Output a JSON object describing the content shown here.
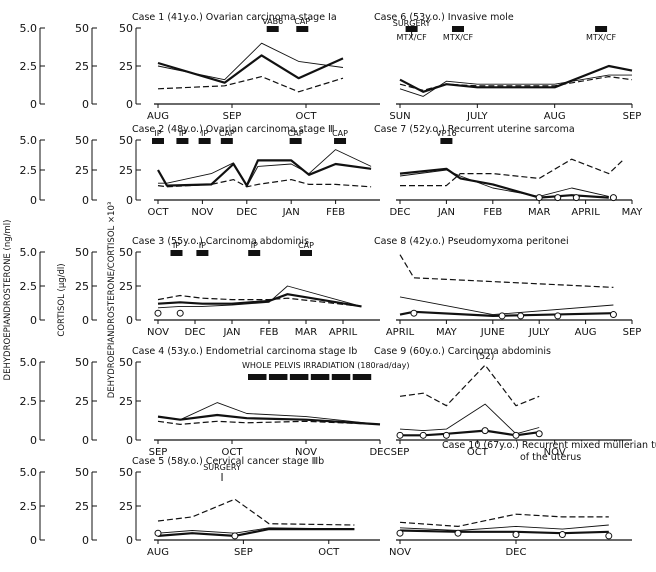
{
  "left_axes": {
    "dhea_label": "DEHYDROEPIANDROSTERONE (ng/ml)",
    "cortisol_label": "CORTISOL (µg/dl)",
    "ratio_label": "DEHYDROEPIANDROSTERONE/CORTISOL ×10³",
    "dhea_ticks": [
      "5.0",
      "2.5",
      "0"
    ],
    "cortisol_ticks": [
      "50",
      "25",
      "0"
    ],
    "ratio_ticks": [
      "50",
      "25",
      "0"
    ]
  },
  "chart_data": [
    {
      "type": "line",
      "title": "Case 1 (41y.o.) Ovarian carcinoma stage Ⅰa",
      "x_ticks": [
        "AUG",
        "SEP",
        "OCT"
      ],
      "x_range": [
        0,
        3
      ],
      "ylim": [
        0,
        50
      ],
      "annotations": [
        {
          "label": "VAB6",
          "x": 1.55
        },
        {
          "label": "CAP",
          "x": 1.95
        }
      ],
      "surgery": null,
      "series": [
        {
          "name": "DHEA",
          "style": "thick",
          "x": [
            0,
            0.9,
            1.4,
            1.9,
            2.5
          ],
          "values": [
            27,
            14,
            32,
            17,
            30
          ]
        },
        {
          "name": "DHEA/Cortisol",
          "style": "thin",
          "x": [
            0,
            0.9,
            1.4,
            1.9,
            2.5
          ],
          "values": [
            25,
            16,
            40,
            28,
            24
          ]
        },
        {
          "name": "Cortisol",
          "style": "dashed",
          "x": [
            0,
            0.9,
            1.4,
            1.9,
            2.5
          ],
          "values": [
            10,
            12,
            18,
            8,
            17
          ]
        }
      ]
    },
    {
      "type": "line",
      "title": "Case 2 (48y.o.) Ovarian carcinoma stage Ⅲ",
      "x_ticks": [
        "OCT",
        "NOV",
        "DEC",
        "JAN",
        "FEB"
      ],
      "x_range": [
        0,
        5
      ],
      "ylim": [
        0,
        50
      ],
      "annotations": [
        {
          "label": "IP",
          "x": 0.0
        },
        {
          "label": "IP",
          "x": 0.55
        },
        {
          "label": "IP",
          "x": 1.05
        },
        {
          "label": "CAP",
          "x": 1.55
        },
        {
          "label": "CAP",
          "x": 3.1
        },
        {
          "label": "CAP",
          "x": 4.1
        }
      ],
      "surgery": null,
      "series": [
        {
          "name": "DHEA",
          "style": "thick",
          "x": [
            0,
            0.2,
            1.2,
            1.7,
            2.0,
            2.25,
            3.0,
            3.4,
            4.0,
            4.8
          ],
          "values": [
            25,
            12,
            13,
            30,
            12,
            33,
            33,
            21,
            30,
            26
          ]
        },
        {
          "name": "DHEA/Cortisol",
          "style": "thin",
          "x": [
            0,
            0.2,
            1.2,
            1.7,
            2.0,
            2.25,
            3.0,
            3.4,
            4.0,
            4.8
          ],
          "values": [
            14,
            14,
            22,
            31,
            11,
            28,
            30,
            22,
            42,
            28
          ]
        },
        {
          "name": "Cortisol",
          "style": "dashed",
          "x": [
            0,
            0.2,
            1.2,
            1.7,
            2.0,
            2.25,
            3.0,
            3.4,
            4.0,
            4.8
          ],
          "values": [
            12,
            11,
            13,
            17,
            11,
            13,
            17,
            13,
            13,
            11
          ]
        }
      ]
    },
    {
      "type": "line",
      "title": "Case 3 (55y.o.) Carcinoma abdominis",
      "x_ticks": [
        "NOV",
        "DEC",
        "JAN",
        "FEB",
        "MAR",
        "APRIL"
      ],
      "x_range": [
        0,
        6
      ],
      "ylim": [
        0,
        50
      ],
      "annotations": [
        {
          "label": "IP",
          "x": 0.5
        },
        {
          "label": "IP",
          "x": 1.2
        },
        {
          "label": "IP",
          "x": 2.6
        },
        {
          "label": "CAP",
          "x": 4.0
        }
      ],
      "surgery": null,
      "series": [
        {
          "name": "DHEA",
          "style": "thick",
          "x": [
            0,
            0.6,
            1.2,
            2.0,
            3.0,
            3.5,
            5.5
          ],
          "values": [
            12,
            13,
            12,
            12,
            14,
            19,
            10
          ]
        },
        {
          "name": "DHEA/Cortisol",
          "style": "thin",
          "x": [
            0,
            0.6,
            1.2,
            2.0,
            3.0,
            3.5,
            5.5
          ],
          "values": [
            9,
            10,
            10,
            11,
            13,
            25,
            10
          ]
        },
        {
          "name": "Cortisol",
          "style": "dashed",
          "x": [
            0,
            0.6,
            1.2,
            2.0,
            3.0,
            3.5,
            5.5
          ],
          "values": [
            15,
            18,
            16,
            15,
            15,
            16,
            10
          ]
        },
        {
          "name": "Cortisol (open markers)",
          "style": "circle",
          "x": [
            0,
            0.6
          ],
          "values": [
            5,
            5
          ]
        }
      ]
    },
    {
      "type": "line",
      "title": "Case 4 (53y.o.) Endometrial carcinoma stage Ⅰb",
      "x_ticks": [
        "SEP",
        "OCT",
        "NOV",
        "DEC"
      ],
      "x_range": [
        0,
        3
      ],
      "ylim": [
        0,
        50
      ],
      "annotations": [],
      "radiation": "WHOLE PELVIS IRRADIATION (180rad/day)",
      "surgery": null,
      "series": [
        {
          "name": "DHEA",
          "style": "thick",
          "x": [
            0,
            0.3,
            0.8,
            1.2,
            2.0,
            3.0
          ],
          "values": [
            15,
            13,
            16,
            14,
            13,
            10
          ]
        },
        {
          "name": "DHEA/Cortisol",
          "style": "thin",
          "x": [
            0,
            0.3,
            0.8,
            1.2,
            2.0,
            3.0
          ],
          "values": [
            15,
            13,
            24,
            17,
            15,
            10
          ]
        },
        {
          "name": "Cortisol",
          "style": "dashed",
          "x": [
            0,
            0.3,
            0.8,
            1.2,
            2.0,
            3.0
          ],
          "values": [
            12,
            10,
            12,
            11,
            12,
            10
          ]
        }
      ]
    },
    {
      "type": "line",
      "title": "Case 5 (58y.o.) Cervical cancer stage Ⅲb",
      "x_ticks": [
        "AUG",
        "SEP",
        "OCT"
      ],
      "x_range": [
        0,
        2.6
      ],
      "ylim": [
        0,
        50
      ],
      "annotations": [],
      "surgery": {
        "label": "SURGERY",
        "x": 0.75
      },
      "series": [
        {
          "name": "DHEA",
          "style": "thick",
          "x": [
            0,
            0.4,
            0.9,
            1.3,
            2.3
          ],
          "values": [
            3,
            5,
            3,
            8,
            8
          ]
        },
        {
          "name": "DHEA/Cortisol",
          "style": "thin",
          "x": [
            0,
            0.4,
            0.9,
            1.3,
            2.3
          ],
          "values": [
            5,
            7,
            5,
            9,
            8
          ]
        },
        {
          "name": "Cortisol",
          "style": "dashed",
          "x": [
            0,
            0.4,
            0.9,
            1.3,
            2.3
          ],
          "values": [
            14,
            17,
            30,
            12,
            11
          ]
        },
        {
          "name": "Cortisol (open markers)",
          "style": "circle",
          "x": [
            0,
            0.9
          ],
          "values": [
            5,
            3
          ]
        }
      ]
    },
    {
      "type": "line",
      "title": "Case 6 (53y.o.) Invasive mole",
      "x_ticks": [
        "SUN",
        "JULY",
        "AUG",
        "SEP"
      ],
      "x_range": [
        0,
        3
      ],
      "ylim": [
        0,
        50
      ],
      "annotations": [
        {
          "label": "MTX/CF",
          "x": 0.15
        },
        {
          "label": "MTX/CF",
          "x": 0.75
        },
        {
          "label": "MTX/CF",
          "x": 2.6
        }
      ],
      "surgery": {
        "label": "SURGERY",
        "x": 0.15
      },
      "series": [
        {
          "name": "DHEA",
          "style": "thick",
          "x": [
            0,
            0.3,
            0.6,
            1.0,
            2.0,
            2.7,
            3.0
          ],
          "values": [
            16,
            8,
            13,
            11,
            11,
            25,
            22
          ]
        },
        {
          "name": "DHEA/Cortisol",
          "style": "thin",
          "x": [
            0,
            0.3,
            0.6,
            1.0,
            2.0,
            2.7,
            3.0
          ],
          "values": [
            10,
            5,
            15,
            13,
            13,
            19,
            19
          ]
        },
        {
          "name": "Cortisol",
          "style": "dashed",
          "x": [
            0,
            0.3,
            0.6,
            1.0,
            2.0,
            2.7,
            3.0
          ],
          "values": [
            13,
            9,
            13,
            12,
            12,
            18,
            16
          ]
        }
      ]
    },
    {
      "type": "line",
      "title": "Case 7 (52y.o.) Recurrent uterine sarcoma",
      "x_ticks": [
        "DEC",
        "JAN",
        "FEB",
        "MAR",
        "APRIL",
        "MAY"
      ],
      "x_range": [
        0,
        5
      ],
      "ylim": [
        0,
        50
      ],
      "annotations": [
        {
          "label": "VP16",
          "x": 1.0
        }
      ],
      "surgery": null,
      "series": [
        {
          "name": "DHEA",
          "style": "thick",
          "x": [
            0,
            1.0,
            1.3,
            2.0,
            3.0,
            3.7,
            4.5
          ],
          "values": [
            22,
            26,
            18,
            13,
            2,
            4,
            2
          ]
        },
        {
          "name": "DHEA/Cortisol",
          "style": "thin",
          "x": [
            0,
            1.0,
            1.3,
            2.0,
            3.0,
            3.7,
            4.5
          ],
          "values": [
            20,
            25,
            20,
            10,
            3,
            10,
            3
          ]
        },
        {
          "name": "Cortisol",
          "style": "dashed",
          "x": [
            0,
            1.0,
            1.3,
            2.0,
            3.0,
            3.7,
            4.5,
            4.8
          ],
          "values": [
            12,
            12,
            22,
            22,
            18,
            34,
            22,
            33
          ]
        },
        {
          "name": "Cortisol (open markers)",
          "style": "circle",
          "x": [
            3.0,
            3.4,
            3.8,
            4.6
          ],
          "values": [
            2,
            2,
            2,
            2
          ]
        }
      ]
    },
    {
      "type": "line",
      "title": "Case 8 (42y.o.) Pseudomyxoma peritonei",
      "x_ticks": [
        "APRIL",
        "MAY",
        "JUNE",
        "JULY",
        "AUG",
        "SEP"
      ],
      "x_range": [
        0,
        5
      ],
      "ylim": [
        0,
        50
      ],
      "annotations": [],
      "surgery": null,
      "series": [
        {
          "name": "Cortisol",
          "style": "dashed",
          "x": [
            0,
            0.3,
            4.6
          ],
          "values": [
            48,
            31,
            24
          ]
        },
        {
          "name": "DHEA/Cortisol",
          "style": "thin",
          "x": [
            0,
            0.3,
            2.0,
            4.6
          ],
          "values": [
            17,
            15,
            4,
            11
          ]
        },
        {
          "name": "DHEA",
          "style": "thick",
          "x": [
            0,
            0.3,
            2.0,
            4.6
          ],
          "values": [
            4,
            6,
            3,
            5
          ]
        },
        {
          "name": "Cortisol (open markers)",
          "style": "circle",
          "x": [
            0.3,
            2.2,
            2.6,
            3.4,
            4.6
          ],
          "values": [
            5,
            3,
            3,
            3,
            4
          ]
        }
      ]
    },
    {
      "type": "line",
      "title": "Case 9 (60y.o.) Carcinoma abdominis",
      "x_ticks": [
        "SEP",
        "OCT",
        "NOV"
      ],
      "x_range": [
        0,
        3
      ],
      "ylim": [
        0,
        50
      ],
      "annotations": [],
      "peak_label": "(52)",
      "surgery": null,
      "series": [
        {
          "name": "Cortisol",
          "style": "dashed",
          "x": [
            0,
            0.3,
            0.6,
            1.1,
            1.5,
            1.8
          ],
          "values": [
            28,
            30,
            22,
            48,
            22,
            28
          ]
        },
        {
          "name": "DHEA/Cortisol",
          "style": "thin",
          "x": [
            0,
            0.3,
            0.6,
            1.1,
            1.5,
            1.8
          ],
          "values": [
            7,
            6,
            7,
            23,
            4,
            8
          ]
        },
        {
          "name": "DHEA",
          "style": "thick",
          "x": [
            0,
            0.3,
            0.6,
            1.1,
            1.5,
            1.8
          ],
          "values": [
            3,
            3,
            4,
            6,
            3,
            5
          ]
        },
        {
          "name": "Cortisol (open markers)",
          "style": "circle",
          "x": [
            0,
            0.3,
            0.6,
            1.1,
            1.5,
            1.8
          ],
          "values": [
            3,
            3,
            3,
            6,
            3,
            4
          ]
        }
      ]
    },
    {
      "type": "line",
      "title": "Case 10 (67y.o.) Recurrent mixed müllerian tumor of the uterus",
      "x_ticks": [
        "NOV",
        "DEC"
      ],
      "x_range": [
        0,
        2
      ],
      "ylim": [
        0,
        50
      ],
      "annotations": [],
      "surgery": null,
      "series": [
        {
          "name": "Cortisol",
          "style": "dashed",
          "x": [
            0,
            0.5,
            1.0,
            1.4,
            1.8
          ],
          "values": [
            13,
            10,
            19,
            17,
            17
          ]
        },
        {
          "name": "DHEA/Cortisol",
          "style": "thin",
          "x": [
            0,
            0.5,
            1.0,
            1.4,
            1.8
          ],
          "values": [
            9,
            7,
            10,
            8,
            11
          ]
        },
        {
          "name": "DHEA",
          "style": "thick",
          "x": [
            0,
            0.5,
            1.0,
            1.4,
            1.8
          ],
          "values": [
            7,
            6,
            6,
            5,
            6
          ]
        },
        {
          "name": "Cortisol (open markers)",
          "style": "circle",
          "x": [
            0,
            0.5,
            1.0,
            1.4,
            1.8
          ],
          "values": [
            5,
            5,
            4,
            4,
            3
          ]
        }
      ]
    }
  ]
}
